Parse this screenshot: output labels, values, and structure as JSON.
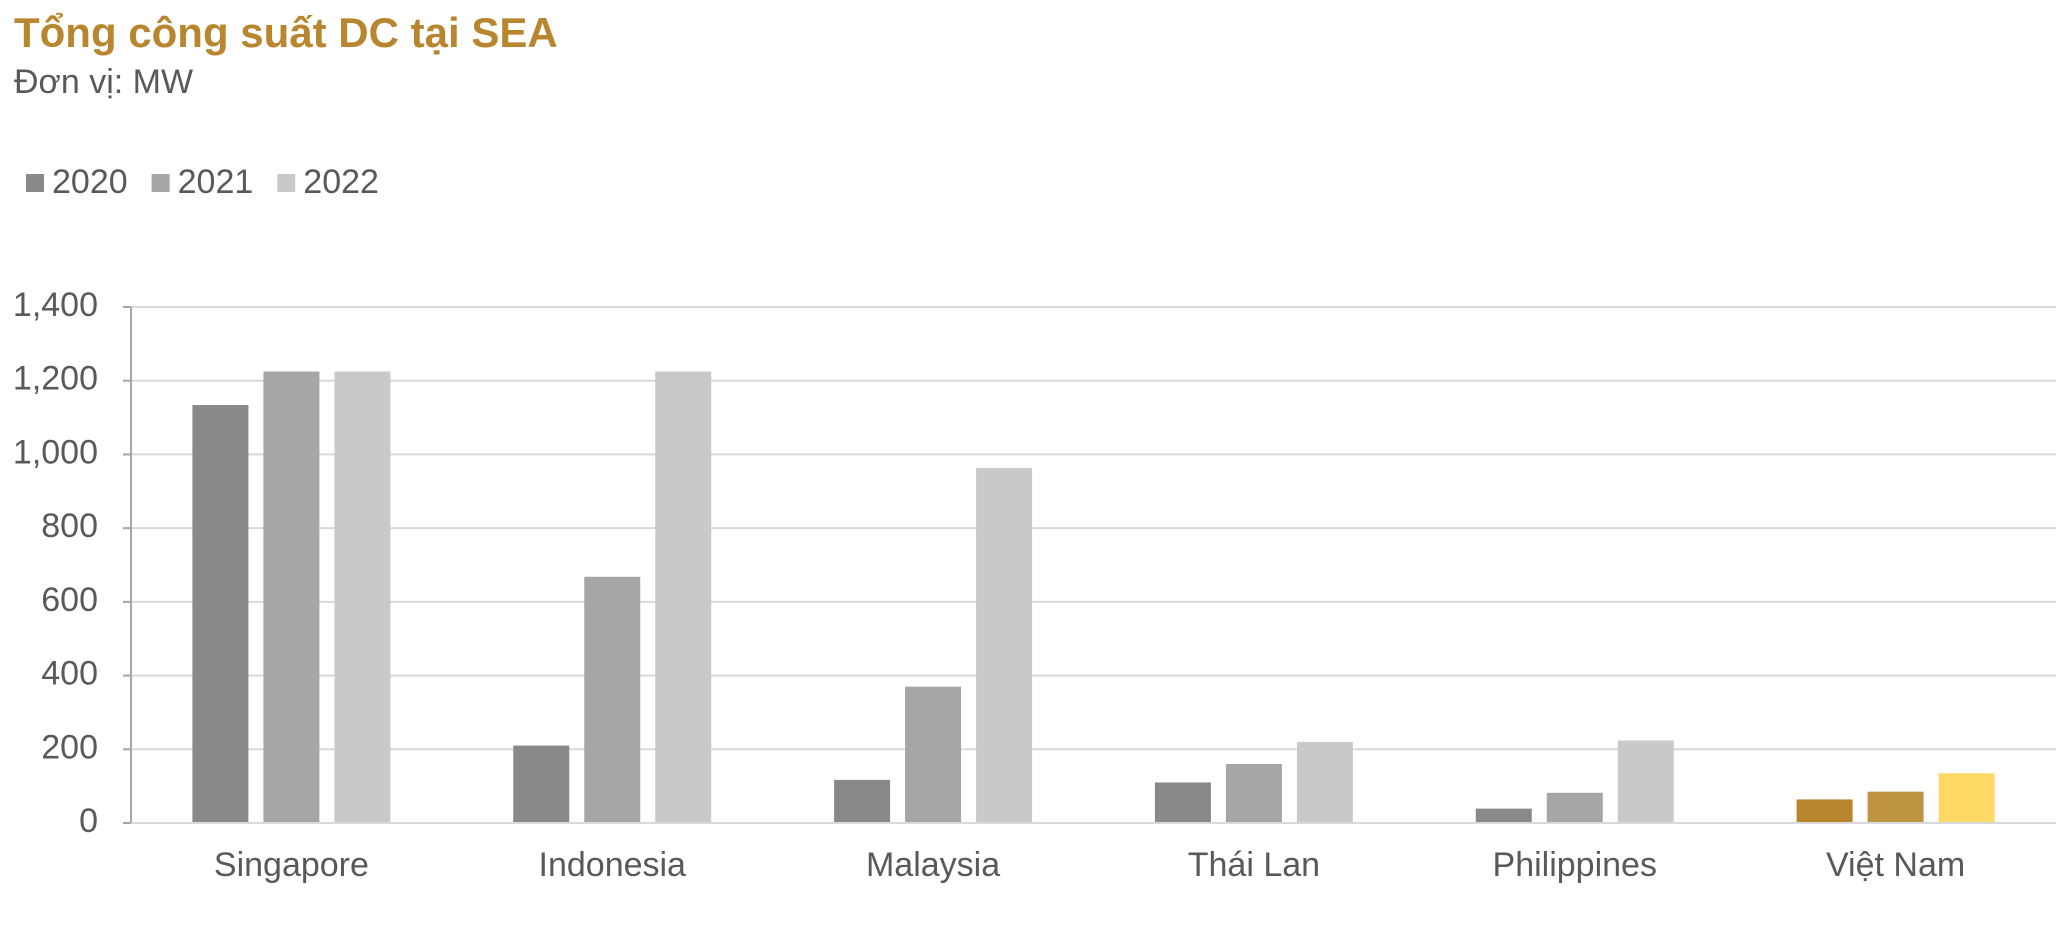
{
  "chart_data": {
    "type": "bar",
    "title": "Tổng công suất DC tại SEA",
    "subtitle": "Đơn vị: MW",
    "categories": [
      "Singapore",
      "Indonesia",
      "Malaysia",
      "Thái Lan",
      "Philippines",
      "Việt Nam"
    ],
    "series": [
      {
        "name": "2020",
        "color": "#898989",
        "colors": [
          "#898989",
          "#898989",
          "#898989",
          "#898989",
          "#898989",
          "#b8862e"
        ],
        "values": [
          1134,
          210,
          117,
          110,
          39,
          64
        ]
      },
      {
        "name": "2021",
        "color": "#a6a6a6",
        "colors": [
          "#a6a6a6",
          "#a6a6a6",
          "#a6a6a6",
          "#a6a6a6",
          "#a6a6a6",
          "#bf9440"
        ],
        "values": [
          1225,
          668,
          370,
          160,
          82,
          85
        ]
      },
      {
        "name": "2022",
        "color": "#c9c9c9",
        "colors": [
          "#c9c9c9",
          "#c9c9c9",
          "#c9c9c9",
          "#c9c9c9",
          "#c9c9c9",
          "#ffd966"
        ],
        "values": [
          1225,
          1225,
          963,
          220,
          224,
          135
        ]
      }
    ],
    "ylim": [
      0,
      1400
    ],
    "yticks": [
      0,
      200,
      400,
      600,
      800,
      {
        "value": 1000,
        "label": "1,000"
      },
      {
        "value": 1200,
        "label": "1,200"
      },
      {
        "value": 1400,
        "label": "1,400"
      }
    ],
    "grid": true,
    "legend": "top-left"
  }
}
